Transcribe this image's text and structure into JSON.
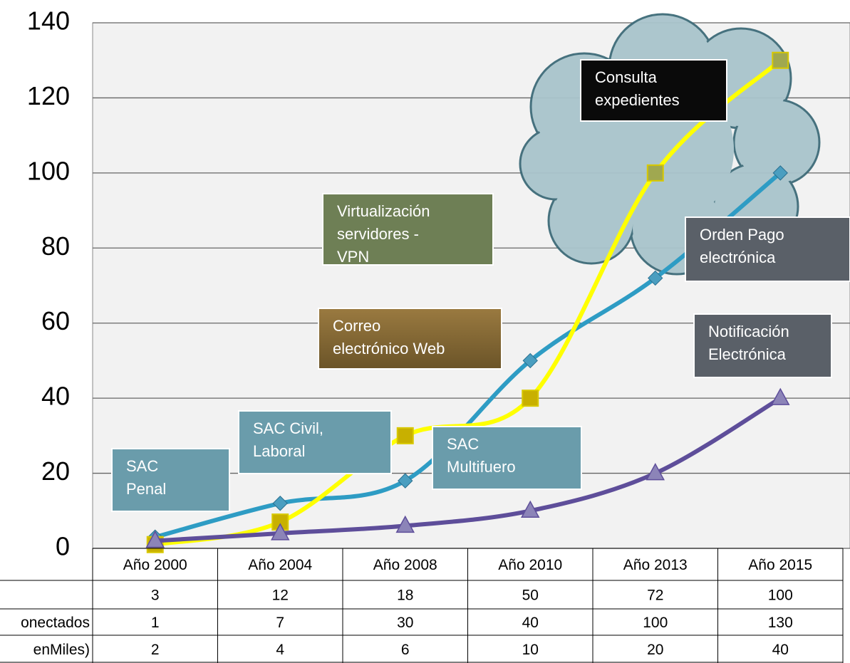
{
  "chart_data": {
    "type": "line",
    "categories": [
      "Año 2000",
      "Año 2004",
      "Año 2008",
      "Año 2010",
      "Año 2013",
      "Año 2015"
    ],
    "series": [
      {
        "name": null,
        "color": "#2e9cc4",
        "marker": "diamond",
        "values": [
          3,
          12,
          18,
          50,
          72,
          100
        ]
      },
      {
        "name": "onectados",
        "color": "#ffff00",
        "marker": "square",
        "values": [
          1,
          7,
          30,
          40,
          100,
          130
        ]
      },
      {
        "name": "enMiles)",
        "color": "#5e4e9a",
        "marker": "triangle",
        "values": [
          2,
          4,
          6,
          10,
          20,
          40
        ]
      }
    ],
    "ylim": [
      0,
      140
    ],
    "yticks": [
      0,
      20,
      40,
      60,
      80,
      100,
      120,
      140
    ],
    "grid": true,
    "annotations": [
      {
        "lines": [
          "SAC",
          "Penal"
        ]
      },
      {
        "lines": [
          "SAC Civil,",
          "Laboral"
        ]
      },
      {
        "lines": [
          "SAC",
          "Multifuero"
        ]
      },
      {
        "lines": [
          "Correo",
          "electrónico Web"
        ]
      },
      {
        "lines": [
          "Virtualización",
          "servidores -",
          "VPN"
        ]
      },
      {
        "lines": [
          "Consulta",
          "expedientes"
        ]
      },
      {
        "lines": [
          "Orden Pago",
          "electrónica"
        ]
      },
      {
        "lines": [
          "Notificación",
          "Electrónica"
        ]
      }
    ]
  }
}
